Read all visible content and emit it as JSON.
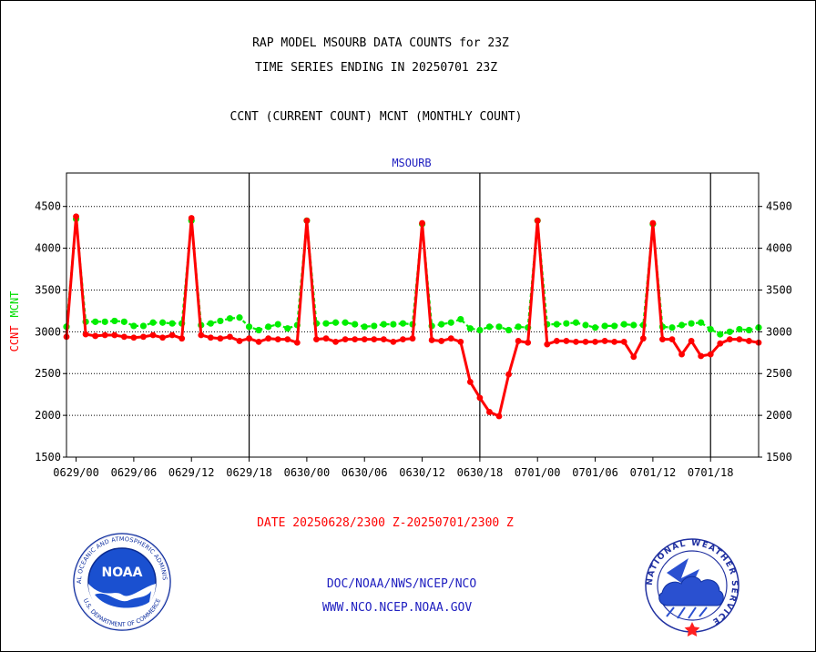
{
  "chart_data": {
    "type": "line",
    "title": "RAP MODEL MSOURB DATA COUNTS for 23Z",
    "subtitle": "TIME SERIES ENDING IN 20250701 23Z",
    "description": "CCNT (CURRENT COUNT) MCNT (MONTHLY COUNT)",
    "panel_label": "MSOURB",
    "ylabel_parts": [
      "CCNT",
      "MCNT"
    ],
    "xlabel": "DATE 20250628/2300 Z-20250701/2300 Z",
    "ylim": [
      1500,
      4900
    ],
    "yticks": [
      1500,
      2000,
      2500,
      3000,
      3500,
      4000,
      4500
    ],
    "xticks": [
      "0629/00",
      "0629/06",
      "0629/12",
      "0629/18",
      "0630/00",
      "0630/06",
      "0630/12",
      "0630/18",
      "0701/00",
      "0701/06",
      "0701/12",
      "0701/18"
    ],
    "x_unit": "hour",
    "x_range": [
      -1,
      71
    ],
    "grid": true,
    "series": [
      {
        "name": "CCNT",
        "color": "#ff0000",
        "x": [
          -1,
          0,
          1,
          2,
          3,
          4,
          5,
          6,
          7,
          8,
          9,
          10,
          11,
          12,
          13,
          14,
          15,
          16,
          17,
          18,
          19,
          20,
          21,
          22,
          23,
          24,
          25,
          26,
          27,
          28,
          29,
          30,
          31,
          32,
          33,
          34,
          35,
          36,
          37,
          38,
          39,
          40,
          41,
          42,
          43,
          44,
          45,
          46,
          47,
          48,
          49,
          50,
          51,
          52,
          53,
          54,
          55,
          56,
          57,
          58,
          59,
          60,
          61,
          62,
          63,
          64,
          65,
          66,
          67,
          68,
          69,
          70,
          71
        ],
        "y": [
          2940,
          4380,
          2970,
          2950,
          2960,
          2960,
          2940,
          2930,
          2940,
          2960,
          2930,
          2960,
          2920,
          4360,
          2960,
          2930,
          2920,
          2940,
          2890,
          2920,
          2880,
          2920,
          2910,
          2910,
          2870,
          4330,
          2910,
          2920,
          2880,
          2910,
          2910,
          2910,
          2910,
          2910,
          2880,
          2910,
          2920,
          4300,
          2900,
          2890,
          2920,
          2880,
          2400,
          2210,
          2040,
          1990,
          2490,
          2890,
          2870,
          4330,
          2850,
          2890,
          2890,
          2880,
          2880,
          2880,
          2890,
          2880,
          2880,
          2700,
          2920,
          4300,
          2910,
          2910,
          2730,
          2890,
          2710,
          2730,
          2860,
          2910,
          2910,
          2890,
          2870
        ]
      },
      {
        "name": "MCNT",
        "color": "#00ee00",
        "x": [
          -1,
          0,
          1,
          2,
          3,
          4,
          5,
          6,
          7,
          8,
          9,
          10,
          11,
          12,
          13,
          14,
          15,
          16,
          17,
          18,
          19,
          20,
          21,
          22,
          23,
          24,
          25,
          26,
          27,
          28,
          29,
          30,
          31,
          32,
          33,
          34,
          35,
          36,
          37,
          38,
          39,
          40,
          41,
          42,
          43,
          44,
          45,
          46,
          47,
          48,
          49,
          50,
          51,
          52,
          53,
          54,
          55,
          56,
          57,
          58,
          59,
          60,
          61,
          62,
          63,
          64,
          65,
          66,
          67,
          68,
          69,
          70,
          71
        ],
        "y": [
          3060,
          4350,
          3120,
          3120,
          3120,
          3130,
          3120,
          3070,
          3070,
          3110,
          3110,
          3100,
          3100,
          4330,
          3080,
          3100,
          3130,
          3160,
          3170,
          3060,
          3020,
          3060,
          3090,
          3040,
          3080,
          4330,
          3100,
          3100,
          3110,
          3110,
          3090,
          3060,
          3070,
          3090,
          3090,
          3100,
          3090,
          4290,
          3070,
          3090,
          3110,
          3150,
          3040,
          3020,
          3060,
          3060,
          3020,
          3060,
          3050,
          4330,
          3090,
          3090,
          3100,
          3110,
          3080,
          3050,
          3070,
          3070,
          3090,
          3080,
          3080,
          4290,
          3060,
          3050,
          3080,
          3100,
          3110,
          3030,
          2970,
          3000,
          3030,
          3020,
          3050
        ]
      }
    ]
  },
  "footer": {
    "line1": "DOC/NOAA/NWS/NCEP/NCO",
    "line2": "WWW.NCO.NCEP.NOAA.GOV"
  },
  "logos": {
    "noaa": {
      "center_text": "NOAA",
      "ring_text": "NATIONAL OCEANIC AND ATMOSPHERIC ADMINISTRATION",
      "ring_text_bottom": "U.S. DEPARTMENT OF COMMERCE",
      "color": "#1040c0"
    },
    "nws": {
      "ring_text": "NATIONAL WEATHER SERVICE",
      "color": "#2040c0"
    }
  }
}
